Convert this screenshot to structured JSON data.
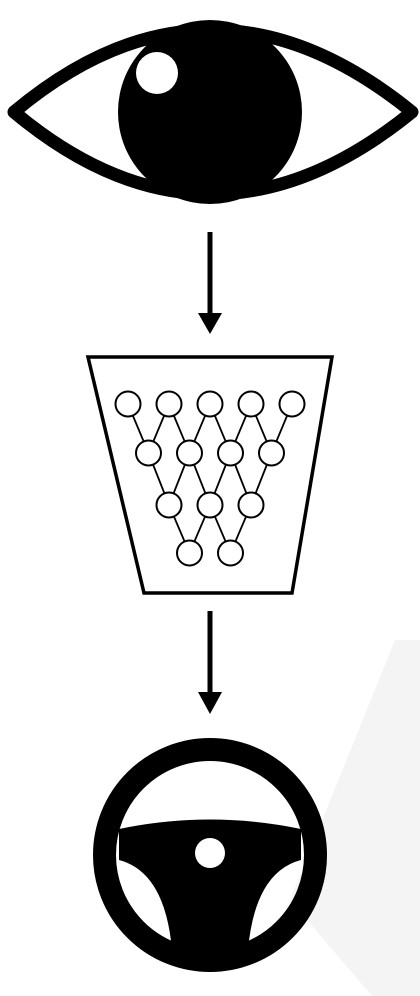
{
  "diagram": {
    "nodes": [
      {
        "id": "perception",
        "icon": "eye-icon"
      },
      {
        "id": "model",
        "icon": "neural-network-icon"
      },
      {
        "id": "control",
        "icon": "steering-wheel-icon"
      }
    ],
    "edges": [
      {
        "from": "perception",
        "to": "model"
      },
      {
        "from": "model",
        "to": "control"
      }
    ],
    "network_layers": [
      5,
      4,
      3,
      2
    ],
    "colors": {
      "ink": "#000000",
      "background": "#ffffff",
      "watermark": "#f4f4f4"
    }
  }
}
